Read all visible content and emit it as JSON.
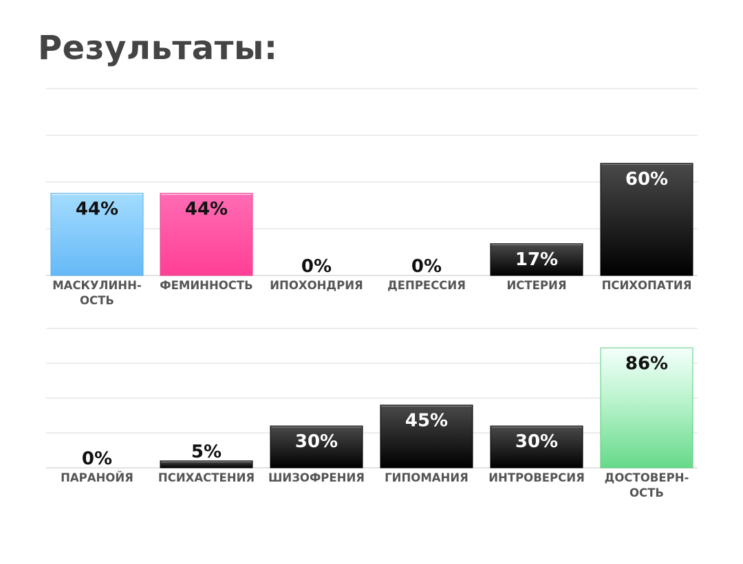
{
  "page": {
    "title": "Результаты:"
  },
  "chart_data": [
    {
      "type": "bar",
      "title": "",
      "xlabel": "",
      "ylabel": "",
      "ylim": [
        0,
        100
      ],
      "grid": true,
      "categories": [
        "МАСКУЛИНН-ОСТЬ",
        "ФЕМИННОСТЬ",
        "ИПОХОНДРИЯ",
        "ДЕПРЕССИЯ",
        "ИСТЕРИЯ",
        "ПСИХОПАТИЯ"
      ],
      "values": [
        44,
        44,
        0,
        0,
        17,
        60
      ],
      "labels": [
        "44%",
        "44%",
        "0%",
        "0%",
        "17%",
        "60%"
      ],
      "colors": [
        "#7cc8fb",
        "#ff5aa8",
        "#1a1a1a",
        "#1a1a1a",
        "#1a1a1a",
        "#1a1a1a"
      ]
    },
    {
      "type": "bar",
      "title": "",
      "xlabel": "",
      "ylabel": "",
      "ylim": [
        0,
        100
      ],
      "grid": true,
      "categories": [
        "ПАРАНОЙЯ",
        "ПСИХАСТЕНИЯ",
        "ШИЗОФРЕНИЯ",
        "ГИПОМАНИЯ",
        "ИНТРОВЕРСИЯ",
        "ДОСТОВЕРН-ОСТЬ"
      ],
      "values": [
        0,
        5,
        30,
        45,
        30,
        86
      ],
      "labels": [
        "0%",
        "5%",
        "30%",
        "45%",
        "30%",
        "86%"
      ],
      "colors": [
        "#1a1a1a",
        "#1a1a1a",
        "#1a1a1a",
        "#1a1a1a",
        "#1a1a1a",
        "#8fe7a8"
      ]
    }
  ]
}
